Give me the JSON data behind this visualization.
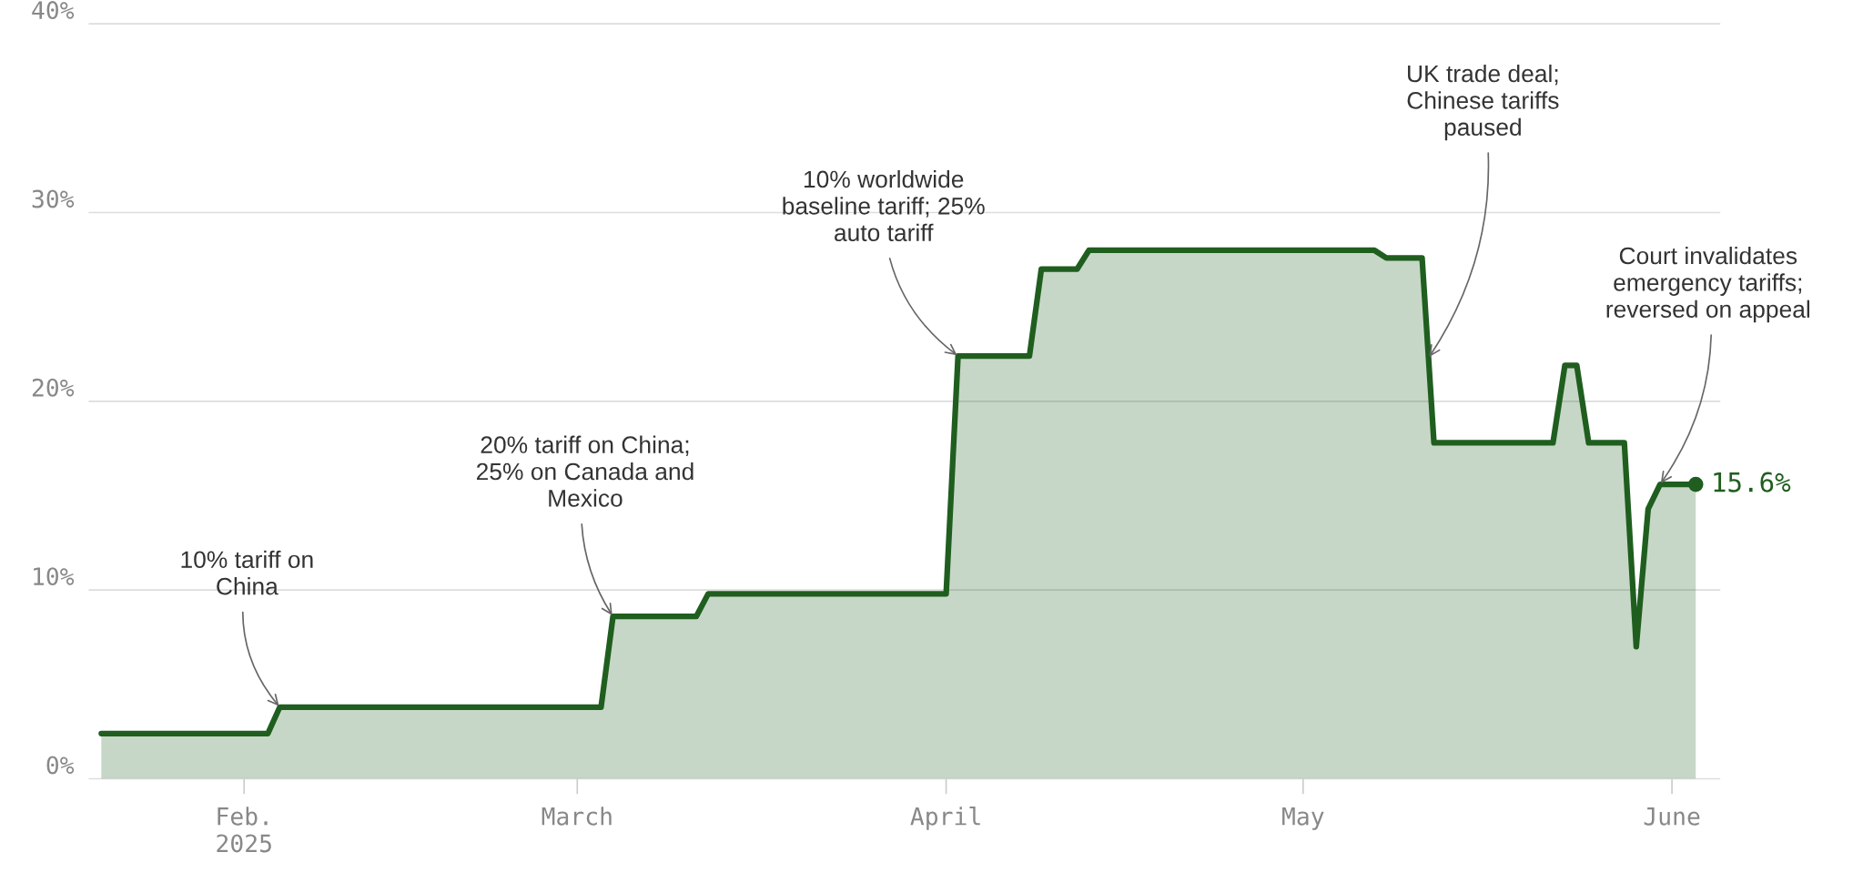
{
  "chart_data": {
    "type": "area",
    "x": [
      "2025-01-20",
      "2025-02-03",
      "2025-02-04",
      "2025-03-03",
      "2025-03-04",
      "2025-03-11",
      "2025-03-12",
      "2025-04-01",
      "2025-04-02",
      "2025-04-08",
      "2025-04-09",
      "2025-04-12",
      "2025-04-13",
      "2025-05-07",
      "2025-05-08",
      "2025-05-11",
      "2025-05-12",
      "2025-05-22",
      "2025-05-23",
      "2025-05-24",
      "2025-05-25",
      "2025-05-28",
      "2025-05-29",
      "2025-05-30",
      "2025-05-31",
      "2025-06-03"
    ],
    "series": [
      {
        "color": "#1f5e1f",
        "values": [
          2.4,
          2.4,
          3.8,
          3.8,
          8.6,
          8.6,
          9.8,
          9.8,
          22.4,
          22.4,
          27.0,
          27.0,
          28.0,
          28.0,
          27.6,
          27.6,
          17.8,
          17.8,
          21.9,
          21.9,
          17.8,
          17.8,
          7.0,
          14.3,
          15.6,
          15.6
        ],
        "value_labels": [
          null,
          null,
          null,
          null,
          null,
          null,
          null,
          null,
          null,
          null,
          null,
          null,
          null,
          null,
          null,
          null,
          null,
          null,
          null,
          null,
          null,
          null,
          null,
          null,
          null,
          "15.6%"
        ]
      }
    ],
    "xlim": [
      "2025-01-19",
      "2025-06-05"
    ],
    "xticks": [
      {
        "value": "2025-02-01",
        "label": "Feb.\n2025"
      },
      {
        "value": "2025-03-01",
        "label": "March"
      },
      {
        "value": "2025-04-01",
        "label": "April"
      },
      {
        "value": "2025-05-01",
        "label": "May"
      },
      {
        "value": "2025-06-01",
        "label": "June"
      }
    ],
    "ylim": [
      0,
      40
    ],
    "yticks": [
      {
        "value": 0,
        "label": "0%"
      },
      {
        "value": 10,
        "label": "10%"
      },
      {
        "value": 20,
        "label": "20%"
      },
      {
        "value": 30,
        "label": "30%"
      },
      {
        "value": 40,
        "label": "40%"
      }
    ],
    "grid": "y",
    "annotations": [
      {
        "text": "10% tariff on\nChina",
        "x": "2025-02-04",
        "y": 3.8
      },
      {
        "text": "20% tariff on China;\n25% on Canada and\nMexico",
        "x": "2025-03-04",
        "y": 8.6
      },
      {
        "text": "10% worldwide\nbaseline tariff; 25%\nauto tariff",
        "x": "2025-04-02",
        "y": 22.4
      },
      {
        "text": "UK trade deal;\nChinese tariffs\npaused",
        "x": "2025-05-11T13:00",
        "y": 22.3
      },
      {
        "text": "Court invalidates\nemergency tariffs;\nreversed on appeal",
        "x": "2025-05-31",
        "y": 15.6
      }
    ]
  }
}
